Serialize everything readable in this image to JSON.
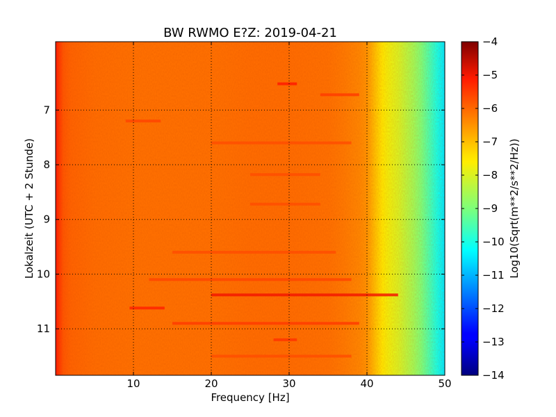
{
  "chart_data": {
    "type": "heatmap",
    "title": "BW RWMO E?Z: 2019-04-21",
    "xlabel": "Frequency [Hz]",
    "ylabel": "Lokalzeit (UTC + 2 Stunde)",
    "xlim": [
      0,
      50
    ],
    "ylim": [
      5.75,
      11.85
    ],
    "y_inverted": true,
    "xticks": [
      10,
      20,
      30,
      40,
      50
    ],
    "yticks": [
      7,
      8,
      9,
      10,
      11
    ],
    "grid": true,
    "grid_style": "dotted",
    "colormap": "jet",
    "colorbar": {
      "label": "Log10(Sqrt(m**2/s**2/Hz))",
      "range": [
        -14,
        -4
      ],
      "ticks": [
        -4,
        -5,
        -6,
        -7,
        -8,
        -9,
        -10,
        -11,
        -12,
        -13,
        -14
      ]
    },
    "spectrum_profile": {
      "frequency_hz": [
        0,
        0.5,
        1,
        2,
        5,
        10,
        15,
        20,
        25,
        30,
        35,
        37,
        39,
        40,
        41,
        42,
        43,
        44,
        45,
        46,
        47,
        48,
        49,
        50
      ],
      "log10_value": [
        -5.1,
        -5.5,
        -5.8,
        -5.95,
        -6.05,
        -6.1,
        -6.1,
        -6.1,
        -6.05,
        -6.05,
        -6.1,
        -6.2,
        -6.35,
        -6.5,
        -7.0,
        -7.5,
        -7.8,
        -8.0,
        -8.3,
        -8.6,
        -9.0,
        -9.5,
        -10.0,
        -10.5
      ]
    },
    "bands": [
      {
        "time": 6.52,
        "f_from": 28.5,
        "f_to": 31,
        "value": -5.1
      },
      {
        "time": 6.72,
        "f_from": 34,
        "f_to": 39,
        "value": -5.5
      },
      {
        "time": 7.2,
        "f_from": 9,
        "f_to": 13.5,
        "value": -5.6
      },
      {
        "time": 7.6,
        "f_from": 20,
        "f_to": 38,
        "value": -5.7
      },
      {
        "time": 8.18,
        "f_from": 25,
        "f_to": 34,
        "value": -5.7
      },
      {
        "time": 8.72,
        "f_from": 25,
        "f_to": 34,
        "value": -5.7
      },
      {
        "time": 9.6,
        "f_from": 15,
        "f_to": 36,
        "value": -5.7
      },
      {
        "time": 10.1,
        "f_from": 12,
        "f_to": 38,
        "value": -5.6
      },
      {
        "time": 10.38,
        "f_from": 20,
        "f_to": 44,
        "value": -5.0
      },
      {
        "time": 10.62,
        "f_from": 9.5,
        "f_to": 14,
        "value": -5.2
      },
      {
        "time": 10.9,
        "f_from": 15,
        "f_to": 39,
        "value": -5.5
      },
      {
        "time": 11.2,
        "f_from": 28,
        "f_to": 31,
        "value": -5.4
      },
      {
        "time": 11.5,
        "f_from": 20,
        "f_to": 38,
        "value": -5.7
      }
    ]
  }
}
